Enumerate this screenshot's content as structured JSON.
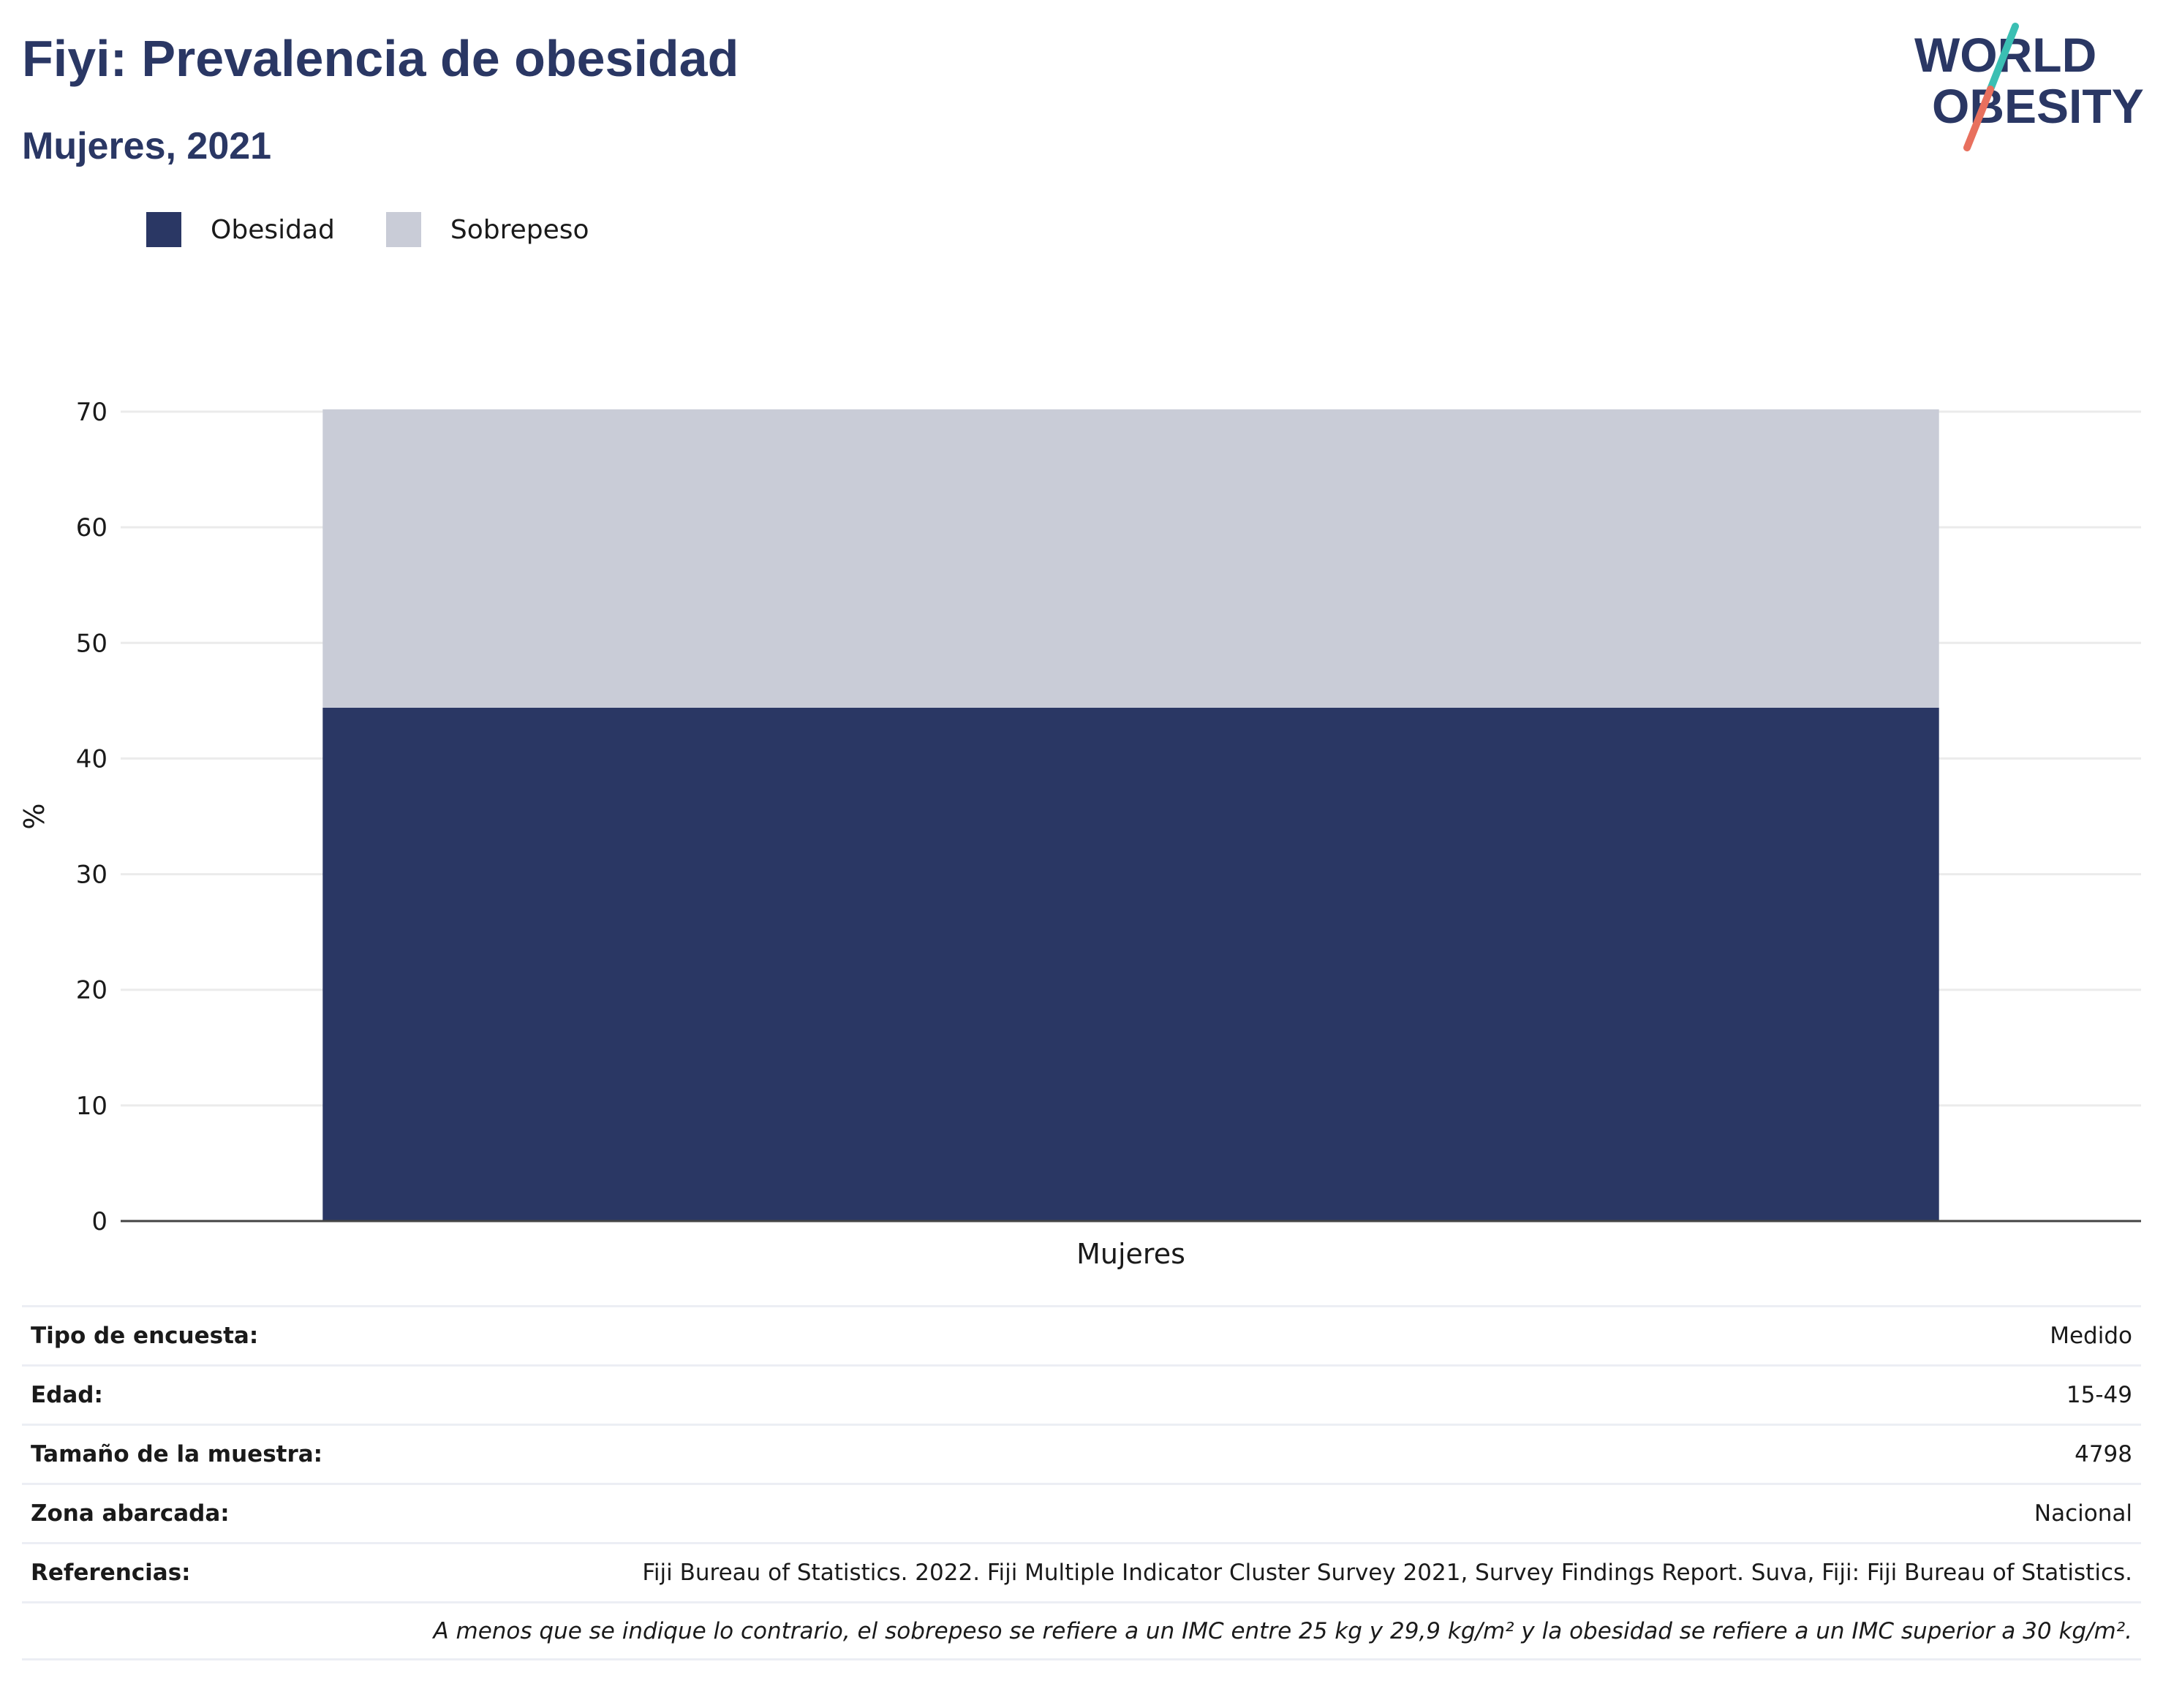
{
  "header": {
    "title": "Fiyi: Prevalencia de obesidad",
    "subtitle": "Mujeres, 2021"
  },
  "logo": {
    "line1": "WORLD",
    "line2": "OBESITY",
    "colors": {
      "text": "#2a3764",
      "slash_top": "#3bbfb3",
      "slash_bottom": "#e8705e"
    }
  },
  "legend": [
    {
      "label": "Obesidad",
      "color": "#2a3764"
    },
    {
      "label": "Sobrepeso",
      "color": "#c9ccd7"
    }
  ],
  "chart_data": {
    "type": "bar",
    "stacked": true,
    "categories": [
      "Mujeres"
    ],
    "series": [
      {
        "name": "Obesidad",
        "values": [
          44.4
        ],
        "color": "#2a3764"
      },
      {
        "name": "Sobrepeso",
        "values": [
          25.8
        ],
        "color": "#c9ccd7"
      }
    ],
    "ylabel": "%",
    "ylim": [
      0,
      70
    ],
    "yticks": [
      0,
      10,
      20,
      30,
      40,
      50,
      60,
      70
    ],
    "grid": true,
    "legend_position": "top-left"
  },
  "info": [
    {
      "label": "Tipo de encuesta:",
      "value": "Medido"
    },
    {
      "label": "Edad:",
      "value": "15-49"
    },
    {
      "label": "Tamaño de la muestra:",
      "value": "4798"
    },
    {
      "label": "Zona abarcada:",
      "value": "Nacional"
    },
    {
      "label": "Referencias:",
      "value": "Fiji Bureau of Statistics. 2022. Fiji Multiple Indicator Cluster Survey 2021, Survey Findings Report. Suva, Fiji: Fiji Bureau of Statistics."
    }
  ],
  "note": "A menos que se indique lo contrario, el sobrepeso se refiere a un IMC entre 25 kg y 29,9 kg/m² y la obesidad se refiere a un IMC superior a 30 kg/m²."
}
